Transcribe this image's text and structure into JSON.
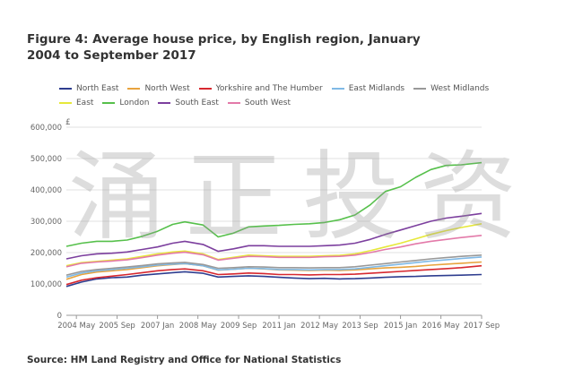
{
  "title_line1": "Figure 4: Average house price, by English region, January",
  "title_line2": "2004 to September 2017",
  "source": "Source: HM Land Registry and Office for National Statistics",
  "watermark": [
    "涌",
    "正",
    "投",
    "资"
  ],
  "chart_data": {
    "type": "line",
    "ylabel": "£",
    "ylim": [
      0,
      600000
    ],
    "yticks": [
      0,
      100000,
      200000,
      300000,
      400000,
      500000,
      600000
    ],
    "ytick_labels": [
      "0",
      "100,000",
      "200,000",
      "300,000",
      "400,000",
      "500,000",
      "600,000"
    ],
    "xlim": [
      2004.0,
      2017.67
    ],
    "xticks": [
      2004.33,
      2005.67,
      2007.0,
      2008.33,
      2009.67,
      2011.0,
      2012.33,
      2013.67,
      2015.0,
      2016.33,
      2017.67
    ],
    "xtick_labels": [
      "2004 May",
      "2005 Sep",
      "2007 Jan",
      "2008 May",
      "2009 Sep",
      "2011 Jan",
      "2012 May",
      "2013 Sep",
      "2015 Jan",
      "2016 May",
      "2017 Sep"
    ],
    "grid": true,
    "legend_position": "top",
    "x": [
      2004.0,
      2004.5,
      2005.0,
      2005.5,
      2006.0,
      2006.5,
      2007.0,
      2007.5,
      2007.9,
      2008.5,
      2009.0,
      2009.5,
      2010.0,
      2010.5,
      2011.0,
      2011.5,
      2012.0,
      2012.5,
      2013.0,
      2013.5,
      2014.0,
      2014.5,
      2015.0,
      2015.5,
      2016.0,
      2016.5,
      2017.0,
      2017.67
    ],
    "series": [
      {
        "name": "North East",
        "color": "#2e3d8f",
        "values": [
          92000,
          106000,
          116000,
          120000,
          122000,
          128000,
          132000,
          136000,
          139000,
          134000,
          122000,
          124000,
          126000,
          124000,
          121000,
          119000,
          117000,
          118000,
          116000,
          117000,
          119000,
          121000,
          123000,
          124000,
          126000,
          127000,
          128000,
          130000
        ]
      },
      {
        "name": "North West",
        "color": "#e8a33d",
        "values": [
          115000,
          130000,
          138000,
          142000,
          146000,
          152000,
          158000,
          162000,
          165000,
          158000,
          144000,
          147000,
          150000,
          148000,
          145000,
          144000,
          143000,
          144000,
          143000,
          145000,
          148000,
          151000,
          153000,
          156000,
          160000,
          163000,
          166000,
          170000
        ]
      },
      {
        "name": "Yorkshire and The Humber",
        "color": "#d7282f",
        "values": [
          98000,
          112000,
          120000,
          125000,
          130000,
          136000,
          142000,
          146000,
          148000,
          142000,
          130000,
          132000,
          135000,
          133000,
          130000,
          130000,
          129000,
          130000,
          130000,
          131000,
          134000,
          137000,
          140000,
          143000,
          146000,
          149000,
          152000,
          158000
        ]
      },
      {
        "name": "East Midlands",
        "color": "#7fb9e6",
        "values": [
          122000,
          135000,
          142000,
          146000,
          150000,
          155000,
          160000,
          163000,
          165000,
          158000,
          145000,
          147000,
          150000,
          149000,
          146000,
          146000,
          145000,
          146000,
          146000,
          148000,
          153000,
          158000,
          163000,
          168000,
          173000,
          177000,
          181000,
          186000
        ]
      },
      {
        "name": "West Midlands",
        "color": "#999999",
        "values": [
          128000,
          140000,
          146000,
          150000,
          154000,
          159000,
          164000,
          167000,
          169000,
          162000,
          150000,
          152000,
          155000,
          154000,
          152000,
          152000,
          151000,
          152000,
          152000,
          155000,
          160000,
          165000,
          170000,
          175000,
          180000,
          184000,
          188000,
          192000
        ]
      },
      {
        "name": "East",
        "color": "#e6e83a",
        "values": [
          158000,
          168000,
          172000,
          176000,
          180000,
          188000,
          196000,
          202000,
          205000,
          196000,
          178000,
          185000,
          192000,
          190000,
          188000,
          188000,
          188000,
          190000,
          191000,
          196000,
          206000,
          218000,
          230000,
          244000,
          258000,
          270000,
          280000,
          292000
        ]
      },
      {
        "name": "London",
        "color": "#56c04b",
        "values": [
          220000,
          230000,
          236000,
          236000,
          240000,
          252000,
          268000,
          290000,
          298000,
          288000,
          250000,
          262000,
          282000,
          285000,
          287000,
          290000,
          292000,
          296000,
          305000,
          320000,
          352000,
          395000,
          410000,
          440000,
          465000,
          478000,
          480000,
          487000
        ]
      },
      {
        "name": "South East",
        "color": "#7c3f9e",
        "values": [
          180000,
          190000,
          196000,
          198000,
          202000,
          210000,
          218000,
          230000,
          236000,
          226000,
          204000,
          212000,
          222000,
          222000,
          220000,
          220000,
          220000,
          222000,
          224000,
          230000,
          242000,
          258000,
          272000,
          286000,
          300000,
          310000,
          316000,
          325000
        ]
      },
      {
        "name": "South West",
        "color": "#e37aa9",
        "values": [
          155000,
          166000,
          170000,
          173000,
          177000,
          184000,
          192000,
          198000,
          201000,
          193000,
          176000,
          182000,
          188000,
          187000,
          185000,
          185000,
          185000,
          187000,
          188000,
          192000,
          200000,
          210000,
          218000,
          228000,
          236000,
          242000,
          248000,
          255000
        ]
      }
    ]
  }
}
